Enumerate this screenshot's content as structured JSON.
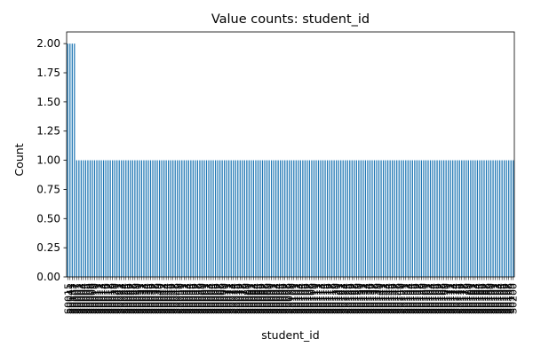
{
  "chart_data": {
    "type": "bar",
    "title": "Value counts: student_id",
    "xlabel": "student_id",
    "ylabel": "Count",
    "ylim": [
      0,
      2.1
    ],
    "yticks": [
      "0.00",
      "0.25",
      "0.50",
      "0.75",
      "1.00",
      "1.25",
      "1.50",
      "1.75",
      "2.00"
    ],
    "ytick_values": [
      0,
      0.25,
      0.5,
      0.75,
      1.0,
      1.25,
      1.5,
      1.75,
      2.0
    ],
    "grid": false,
    "legend": "none",
    "bar_color": "#1f77b4",
    "categories": [
      "S0015",
      "S0041",
      "S0135",
      "S0007",
      "S0001",
      "S0002",
      "S0003",
      "S0004",
      "S0005",
      "S0006",
      "S0008",
      "S0009",
      "S0010",
      "S0011",
      "S0012",
      "S0013",
      "S0014",
      "S0016",
      "S0017",
      "S0018",
      "S0019",
      "S0020",
      "S0021",
      "S0022",
      "S0023",
      "S0024",
      "S0025",
      "S0026",
      "S0027",
      "S0028",
      "S0029",
      "S0030",
      "S0031",
      "S0032",
      "S0033",
      "S0034",
      "S0035",
      "S0036",
      "S0037",
      "S0038",
      "S0039",
      "S0040",
      "S0042",
      "S0043",
      "S0044",
      "S0045",
      "S0046",
      "S0047",
      "S0048",
      "S0049",
      "S0050",
      "S0051",
      "S0052",
      "S0053",
      "S0054",
      "S0055",
      "S0056",
      "S0057",
      "S0058",
      "S0059",
      "S0060",
      "S0061",
      "S0062",
      "S0063",
      "S0064",
      "S0065",
      "S0066",
      "S0067",
      "S0068",
      "S0069",
      "S0070",
      "S0071",
      "S0072",
      "S0073",
      "S0074",
      "S0075",
      "S0076",
      "S0077",
      "S0078",
      "S0079",
      "S0080",
      "S0081",
      "S0082",
      "S0083",
      "S0084",
      "S0085",
      "S0086",
      "S0087",
      "S0088",
      "S0089",
      "S0090",
      "S0091",
      "S0092",
      "S0093",
      "S0094",
      "S0095",
      "S0096",
      "S0097",
      "S0098",
      "S0099",
      "S0100",
      "S0101",
      "S0102",
      "S0103",
      "S0104",
      "S0105",
      "S0106",
      "S0107",
      "S0108",
      "S0109",
      "S0110",
      "S0111",
      "S0112",
      "S0113",
      "S0114",
      "S0115",
      "S0116",
      "S0117",
      "S0118",
      "S0119",
      "S0120",
      "S0121",
      "S0122",
      "S0123",
      "S0124",
      "S0125",
      "S0126",
      "S0127",
      "S0128",
      "S0129",
      "S0130",
      "S0131",
      "S0132",
      "S0133",
      "S0134",
      "S0136",
      "S0137",
      "S0138",
      "S0139",
      "S0140",
      "S0141",
      "S0142",
      "S0143",
      "S0144",
      "S0145",
      "S0146",
      "S0147",
      "S0148",
      "S0149",
      "S0150",
      "S0151",
      "S0152",
      "S0153",
      "S0154",
      "S0155",
      "S0156",
      "S0157",
      "S0158",
      "S0159",
      "S0160",
      "S0161",
      "S0162",
      "S0163",
      "S0164",
      "S0165",
      "S0166",
      "S0167",
      "S0168",
      "S0169",
      "S0170",
      "S0171",
      "S0172",
      "S0173",
      "S0174",
      "S0175",
      "S0176",
      "S0177",
      "S0178",
      "S0179",
      "S0180",
      "S0181",
      "S0182",
      "S0183",
      "S0184",
      "S0185",
      "S0186",
      "S0187",
      "S0188",
      "S0189",
      "S0190",
      "S0191",
      "S0192",
      "S0193",
      "S0194",
      "S0195",
      "S0196",
      "S0197",
      "S0198",
      "S0199",
      "S0200"
    ],
    "values": [
      2,
      2,
      2,
      2,
      1,
      1,
      1,
      1,
      1,
      1,
      1,
      1,
      1,
      1,
      1,
      1,
      1,
      1,
      1,
      1,
      1,
      1,
      1,
      1,
      1,
      1,
      1,
      1,
      1,
      1,
      1,
      1,
      1,
      1,
      1,
      1,
      1,
      1,
      1,
      1,
      1,
      1,
      1,
      1,
      1,
      1,
      1,
      1,
      1,
      1,
      1,
      1,
      1,
      1,
      1,
      1,
      1,
      1,
      1,
      1,
      1,
      1,
      1,
      1,
      1,
      1,
      1,
      1,
      1,
      1,
      1,
      1,
      1,
      1,
      1,
      1,
      1,
      1,
      1,
      1,
      1,
      1,
      1,
      1,
      1,
      1,
      1,
      1,
      1,
      1,
      1,
      1,
      1,
      1,
      1,
      1,
      1,
      1,
      1,
      1,
      1,
      1,
      1,
      1,
      1,
      1,
      1,
      1,
      1,
      1,
      1,
      1,
      1,
      1,
      1,
      1,
      1,
      1,
      1,
      1,
      1,
      1,
      1,
      1,
      1,
      1,
      1,
      1,
      1,
      1,
      1,
      1,
      1,
      1,
      1,
      1,
      1,
      1,
      1,
      1,
      1,
      1,
      1,
      1,
      1,
      1,
      1,
      1,
      1,
      1,
      1,
      1,
      1,
      1,
      1,
      1,
      1,
      1,
      1,
      1,
      1,
      1,
      1,
      1,
      1,
      1,
      1,
      1,
      1,
      1,
      1,
      1,
      1,
      1,
      1,
      1,
      1,
      1,
      1,
      1,
      1,
      1,
      1,
      1,
      1,
      1,
      1,
      1,
      1,
      1,
      1,
      1,
      1,
      1,
      1,
      1,
      1,
      1,
      1,
      1
    ]
  }
}
